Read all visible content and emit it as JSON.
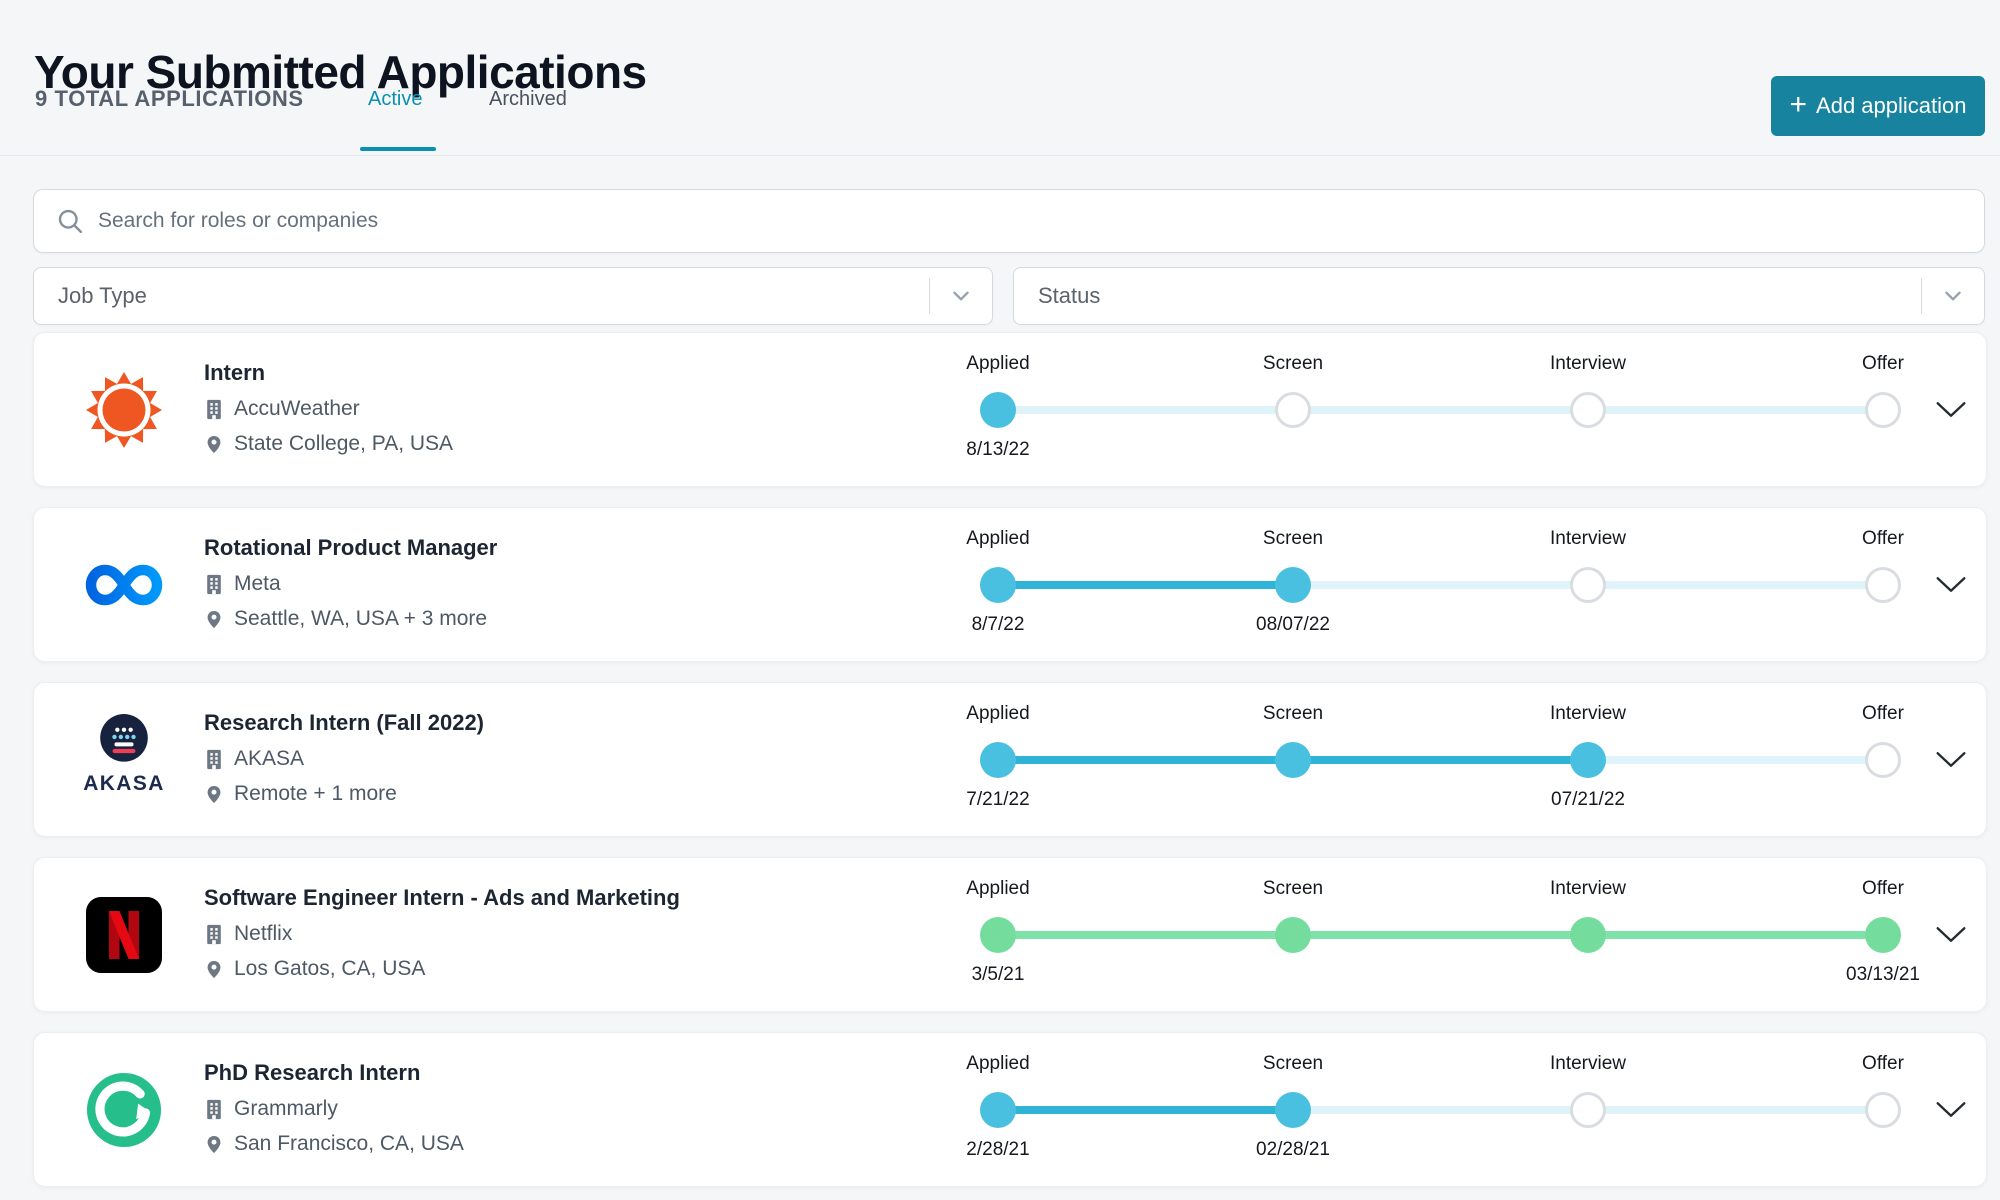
{
  "page": {
    "title": "Your Submitted Applications",
    "total_label": "9 TOTAL APPLICATIONS",
    "tabs": [
      {
        "label": "Active",
        "active": true
      },
      {
        "label": "Archived",
        "active": false
      }
    ],
    "add_button": {
      "plus": "+",
      "label": "Add application"
    }
  },
  "search": {
    "placeholder": "Search for roles or companies",
    "icon": "search-icon"
  },
  "filters": [
    {
      "label": "Job Type",
      "icon": "chevron-down-icon"
    },
    {
      "label": "Status",
      "icon": "chevron-down-icon"
    }
  ],
  "step_names": [
    "Applied",
    "Screen",
    "Interview",
    "Offer"
  ],
  "applications": [
    {
      "role": "Intern",
      "company": "AccuWeather",
      "location": "State College, PA, USA",
      "logo": "accuweather-logo",
      "theme": "cyan",
      "progress": [
        {
          "label": "Applied",
          "state": "done",
          "date": "8/13/22"
        },
        {
          "label": "Screen",
          "state": "todo",
          "date": ""
        },
        {
          "label": "Interview",
          "state": "todo",
          "date": ""
        },
        {
          "label": "Offer",
          "state": "todo",
          "date": ""
        }
      ]
    },
    {
      "role": "Rotational Product Manager",
      "company": "Meta",
      "location": "Seattle, WA, USA + 3 more",
      "logo": "meta-logo",
      "theme": "cyan",
      "progress": [
        {
          "label": "Applied",
          "state": "done",
          "date": "8/7/22"
        },
        {
          "label": "Screen",
          "state": "done",
          "date": "08/07/22"
        },
        {
          "label": "Interview",
          "state": "todo",
          "date": ""
        },
        {
          "label": "Offer",
          "state": "todo",
          "date": ""
        }
      ]
    },
    {
      "role": "Research Intern (Fall 2022)",
      "company": "AKASA",
      "location": "Remote + 1 more",
      "logo": "akasa-logo",
      "theme": "cyan",
      "progress": [
        {
          "label": "Applied",
          "state": "done",
          "date": "7/21/22"
        },
        {
          "label": "Screen",
          "state": "done",
          "date": ""
        },
        {
          "label": "Interview",
          "state": "done",
          "date": "07/21/22"
        },
        {
          "label": "Offer",
          "state": "todo",
          "date": ""
        }
      ]
    },
    {
      "role": "Software Engineer Intern - Ads and Marketing",
      "company": "Netflix",
      "location": "Los Gatos, CA, USA",
      "logo": "netflix-logo",
      "theme": "green",
      "progress": [
        {
          "label": "Applied",
          "state": "done",
          "date": "3/5/21"
        },
        {
          "label": "Screen",
          "state": "done",
          "date": ""
        },
        {
          "label": "Interview",
          "state": "done",
          "date": ""
        },
        {
          "label": "Offer",
          "state": "done",
          "date": "03/13/21"
        }
      ]
    },
    {
      "role": "PhD Research Intern",
      "company": "Grammarly",
      "location": "San Francisco, CA, USA",
      "logo": "grammarly-logo",
      "theme": "cyan",
      "progress": [
        {
          "label": "Applied",
          "state": "done",
          "date": "2/28/21"
        },
        {
          "label": "Screen",
          "state": "done",
          "date": "02/28/21"
        },
        {
          "label": "Interview",
          "state": "todo",
          "date": ""
        },
        {
          "label": "Offer",
          "state": "todo",
          "date": ""
        }
      ]
    }
  ],
  "colors": {
    "accent_teal": "#0c90b2",
    "button_teal": "#17839e",
    "cyan_dot": "#49c0e0",
    "cyan_connector": "#2fb4d8",
    "green_dot": "#74dd9e",
    "green_connector": "#7fe2a8",
    "todo_connector": "#dff3fb",
    "todo_dot_border": "#d9dde2",
    "accuweather_orange": "#ee5622",
    "meta_blue": "#0a7cff",
    "netflix_red": "#e50914",
    "grammarly_green": "#26bf8c",
    "akasa_navy": "#1b2a4d"
  }
}
